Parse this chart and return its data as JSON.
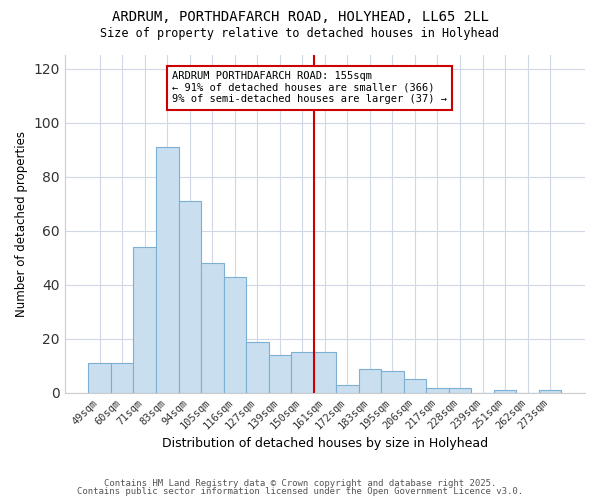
{
  "title": "ARDRUM, PORTHDAFARCH ROAD, HOLYHEAD, LL65 2LL",
  "subtitle": "Size of property relative to detached houses in Holyhead",
  "xlabel": "Distribution of detached houses by size in Holyhead",
  "ylabel": "Number of detached properties",
  "bar_labels": [
    "49sqm",
    "60sqm",
    "71sqm",
    "83sqm",
    "94sqm",
    "105sqm",
    "116sqm",
    "127sqm",
    "139sqm",
    "150sqm",
    "161sqm",
    "172sqm",
    "183sqm",
    "195sqm",
    "206sqm",
    "217sqm",
    "228sqm",
    "239sqm",
    "251sqm",
    "262sqm",
    "273sqm"
  ],
  "bar_heights": [
    11,
    11,
    54,
    91,
    71,
    48,
    43,
    19,
    14,
    15,
    15,
    3,
    9,
    8,
    5,
    2,
    2,
    0,
    1,
    0,
    1
  ],
  "bar_color": "#c9dff0",
  "bar_edge_color": "#7bafd4",
  "vline_x": 9.5,
  "vline_color": "#cc0000",
  "annotation_title": "ARDRUM PORTHDAFARCH ROAD: 155sqm",
  "annotation_line1": "← 91% of detached houses are smaller (366)",
  "annotation_line2": "9% of semi-detached houses are larger (37) →",
  "annotation_box_color": "#ffffff",
  "annotation_box_edge": "#cc0000",
  "ylim": [
    0,
    125
  ],
  "bg_color": "#ffffff",
  "plot_bg_color": "#ffffff",
  "grid_color": "#d0d8e8",
  "footer1": "Contains HM Land Registry data © Crown copyright and database right 2025.",
  "footer2": "Contains public sector information licensed under the Open Government Licence v3.0."
}
